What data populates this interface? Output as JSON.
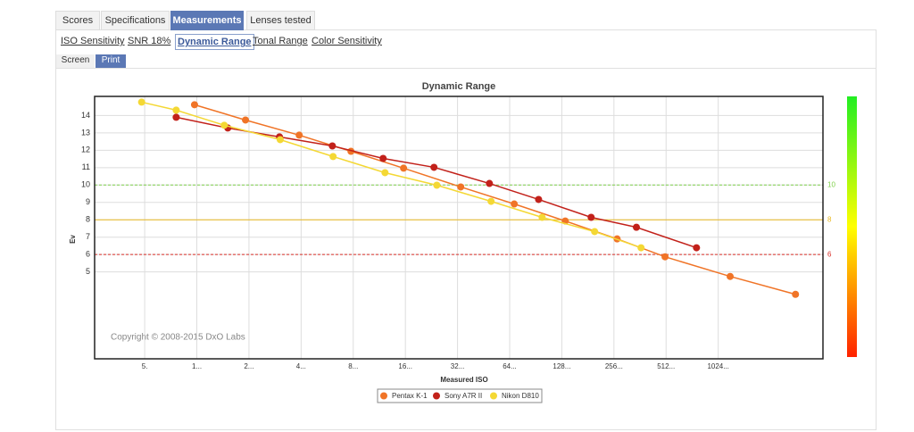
{
  "tabs": [
    "Scores",
    "Specifications",
    "Measurements",
    "Lenses tested"
  ],
  "active_tab": 2,
  "subtabs": [
    "ISO Sensitivity",
    "SNR 18%",
    "Dynamic Range",
    "Tonal Range",
    "Color Sensitivity"
  ],
  "active_subtab": 2,
  "buttons": [
    "Screen",
    "Print"
  ],
  "chart_data": {
    "type": "line",
    "title": "Dynamic Range",
    "x_label": "Measured ISO",
    "y_label": "Ev",
    "annotation": "Copyright © 2008-2015 DxO Labs",
    "xscale": "log",
    "grid": true,
    "xlim": [
      25.7,
      412000
    ],
    "ylim": [
      0,
      15.1
    ],
    "xticks": [
      {
        "value": 50,
        "label": "5."
      },
      {
        "value": 100,
        "label": "1..."
      },
      {
        "value": 200,
        "label": "2..."
      },
      {
        "value": 400,
        "label": "4..."
      },
      {
        "value": 800,
        "label": "8..."
      },
      {
        "value": 1600,
        "label": "16..."
      },
      {
        "value": 3200,
        "label": "32..."
      },
      {
        "value": 6400,
        "label": "64..."
      },
      {
        "value": 12800,
        "label": "128..."
      },
      {
        "value": 25600,
        "label": "256..."
      },
      {
        "value": 51200,
        "label": "512..."
      },
      {
        "value": 102400,
        "label": "1024..."
      }
    ],
    "yticks": [
      5,
      6,
      7,
      8,
      9,
      10,
      11,
      12,
      13,
      14
    ],
    "reference_lines": [
      {
        "value": 10,
        "color": "#7fd04a"
      },
      {
        "value": 8,
        "color": "#e8b820"
      },
      {
        "value": 6,
        "color": "#d9302a"
      }
    ],
    "series": [
      {
        "name": "Pentax K-1",
        "color": "#f07427",
        "x": [
          97,
          191,
          390,
          776,
          1562,
          3340,
          6800,
          13400,
          26700,
          50500,
          120000,
          286000
        ],
        "values": [
          14.62,
          13.74,
          12.87,
          11.94,
          10.97,
          9.89,
          8.91,
          7.93,
          6.9,
          5.87,
          4.74,
          3.71
        ]
      },
      {
        "name": "Sony A7R II",
        "color": "#c2211a",
        "x": [
          76,
          151,
          300,
          606,
          1190,
          2340,
          4890,
          9400,
          18900,
          34500,
          76700
        ],
        "values": [
          13.9,
          13.28,
          12.77,
          12.25,
          11.53,
          11.02,
          10.09,
          9.17,
          8.14,
          7.57,
          6.39
        ]
      },
      {
        "name": "Nikon D810",
        "color": "#f4d834",
        "x": [
          48,
          76,
          144,
          303,
          612,
          1220,
          2430,
          5000,
          9850,
          19800,
          36700
        ],
        "values": [
          14.77,
          14.31,
          13.44,
          12.61,
          11.64,
          10.71,
          9.99,
          9.06,
          8.14,
          7.32,
          6.39
        ]
      }
    ]
  }
}
